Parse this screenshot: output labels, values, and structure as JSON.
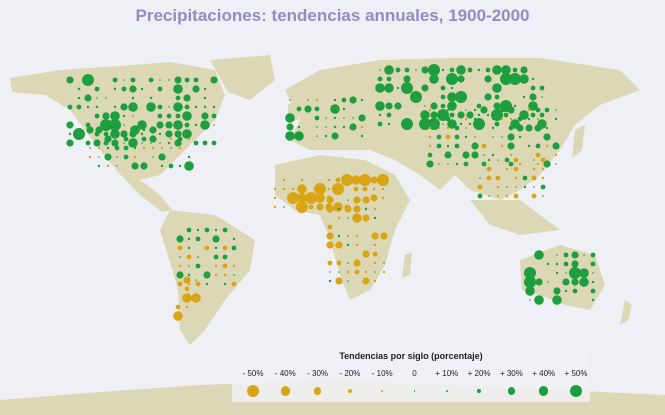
{
  "title": "Precipitaciones: tendencias annuales, 1900-2000",
  "colors": {
    "background": "#eef0f6",
    "land": "#dcd8b6",
    "decrease": "#d9a514",
    "increase": "#1e9e3e",
    "title": "#9a88c4"
  },
  "legend": {
    "title": "Tendencias por siglo (porcentaje)",
    "items": [
      {
        "label": "- 50%",
        "value": -50
      },
      {
        "label": "- 40%",
        "value": -40
      },
      {
        "label": "- 30%",
        "value": -30
      },
      {
        "label": "- 20%",
        "value": -20
      },
      {
        "label": "- 10%",
        "value": -10
      },
      {
        "label": "0",
        "value": 0
      },
      {
        "label": "+ 10%",
        "value": 10
      },
      {
        "label": "+ 20%",
        "value": 20
      },
      {
        "label": "+ 30%",
        "value": 30
      },
      {
        "label": "+ 40%",
        "value": 40
      },
      {
        "label": "+ 50%",
        "value": 50
      }
    ]
  }
}
